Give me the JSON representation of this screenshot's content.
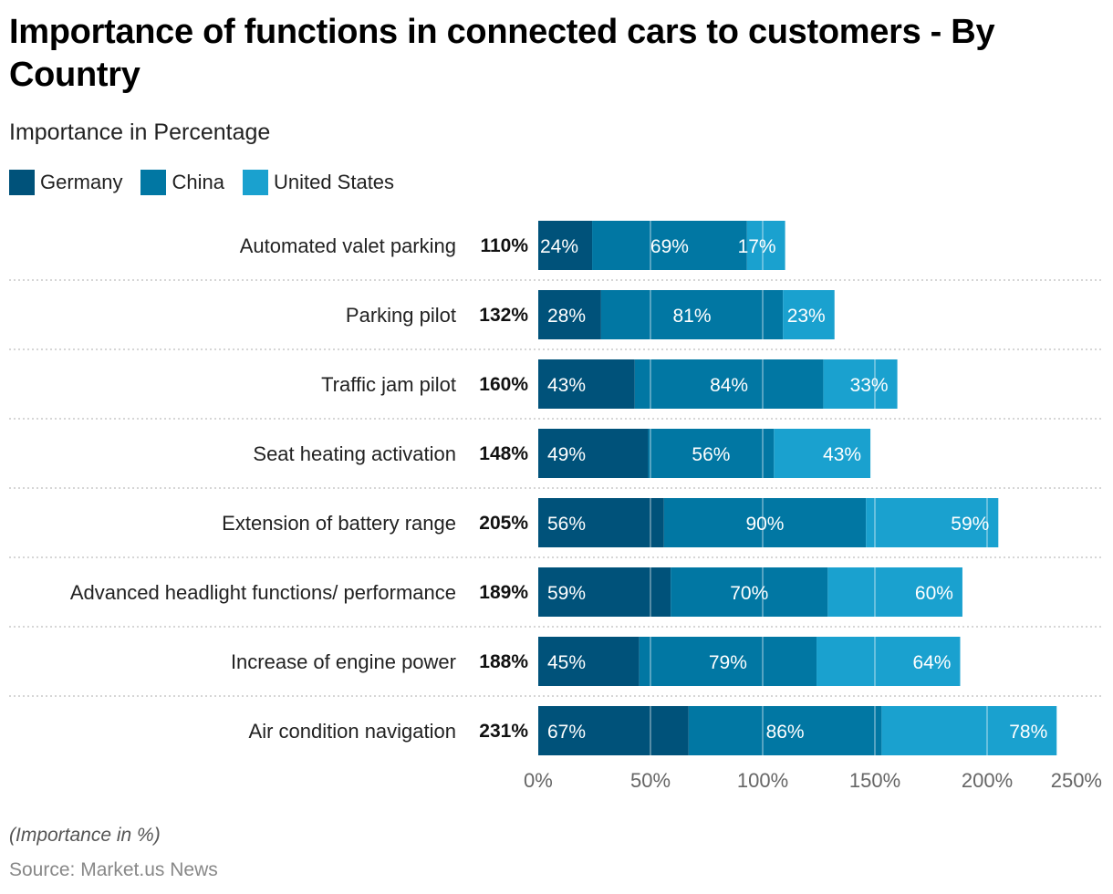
{
  "title": "Importance of functions in connected cars to customers - By Country",
  "subtitle": "Importance in Percentage",
  "footer": {
    "note": "(Importance in %)",
    "source": "Source: Market.us News"
  },
  "chart_data": {
    "type": "bar",
    "orientation": "horizontal",
    "stacked": true,
    "title": "Importance of functions in connected cars to customers - By Country",
    "subtitle": "Importance in Percentage",
    "xlabel": "",
    "ylabel": "",
    "xlim": [
      0,
      250
    ],
    "ticks": [
      "0%",
      "50%",
      "100%",
      "150%",
      "200%",
      "250%"
    ],
    "tick_values": [
      0,
      50,
      100,
      150,
      200,
      250
    ],
    "grid": true,
    "legend_position": "top-left",
    "categories": [
      "Automated valet parking",
      "Parking pilot",
      "Traffic jam pilot",
      "Seat heating activation",
      "Extension of battery range",
      "Advanced headlight functions/ performance",
      "Increase of engine power",
      "Air condition navigation"
    ],
    "totals": [
      "110%",
      "132%",
      "160%",
      "148%",
      "205%",
      "189%",
      "188%",
      "231%"
    ],
    "series": [
      {
        "name": "Germany",
        "color": "#00527a",
        "values": [
          24,
          28,
          43,
          49,
          56,
          59,
          45,
          67
        ]
      },
      {
        "name": "China",
        "color": "#0177a3",
        "values": [
          69,
          81,
          84,
          56,
          90,
          70,
          79,
          86
        ]
      },
      {
        "name": "United States",
        "color": "#1aa1cf",
        "values": [
          17,
          23,
          33,
          43,
          59,
          60,
          64,
          78
        ]
      }
    ]
  }
}
